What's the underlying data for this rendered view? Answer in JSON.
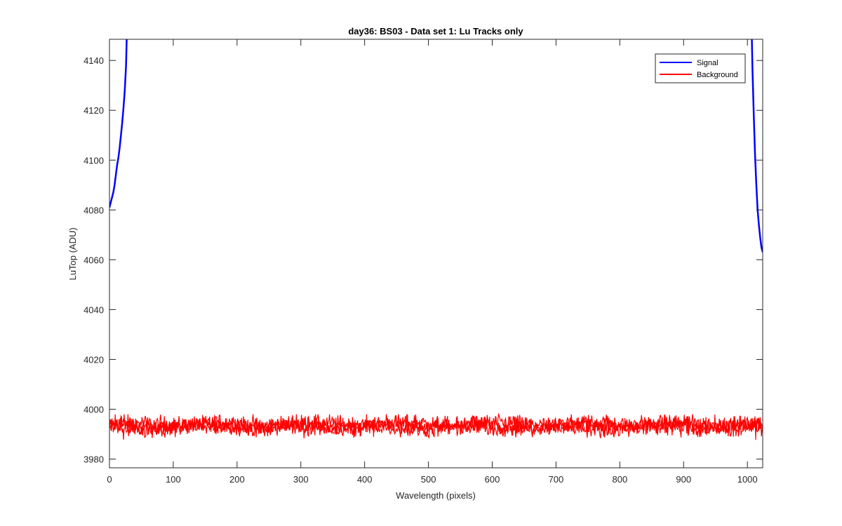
{
  "chart_data": {
    "type": "line",
    "title": "day36: BS03 - Data set 1: Lu Tracks only",
    "xlabel": "Wavelength (pixels)",
    "ylabel": "LuTop (ADU)",
    "xlim": [
      0,
      1024
    ],
    "ylim": [
      3976.5,
      4148.5
    ],
    "xticks": [
      0,
      100,
      200,
      300,
      400,
      500,
      600,
      700,
      800,
      900,
      1000
    ],
    "yticks": [
      3980,
      4000,
      4020,
      4040,
      4060,
      4080,
      4100,
      4120,
      4140
    ],
    "grid": false,
    "legend_position": "top-right",
    "series": [
      {
        "name": "Signal",
        "color": "#0000ff",
        "segments": [
          {
            "x": [
              0,
              2,
              4,
              6,
              8,
              10,
              12,
              14,
              16,
              18,
              20,
              22,
              24,
              26,
              27
            ],
            "y": [
              4081,
              4083,
              4085,
              4087,
              4090,
              4094,
              4098,
              4101,
              4105,
              4110,
              4115,
              4121,
              4128,
              4138,
              4148.5
            ]
          },
          {
            "x": [
              1007,
              1008,
              1010,
              1012,
              1014,
              1016,
              1018,
              1020,
              1022,
              1024
            ],
            "y": [
              4148.5,
              4136,
              4118,
              4102,
              4090,
              4080,
              4074,
              4069,
              4065,
              4063
            ]
          }
        ]
      },
      {
        "name": "Background",
        "color": "#ff0000",
        "x_range": [
          0,
          1024
        ],
        "traces": [
          {
            "mean": 3994.0,
            "noise": 1.8
          },
          {
            "mean": 3993.5,
            "noise": 1.8
          },
          {
            "mean": 3992.5,
            "noise": 1.8
          }
        ],
        "y_min": 3987,
        "y_max": 3998
      }
    ]
  }
}
